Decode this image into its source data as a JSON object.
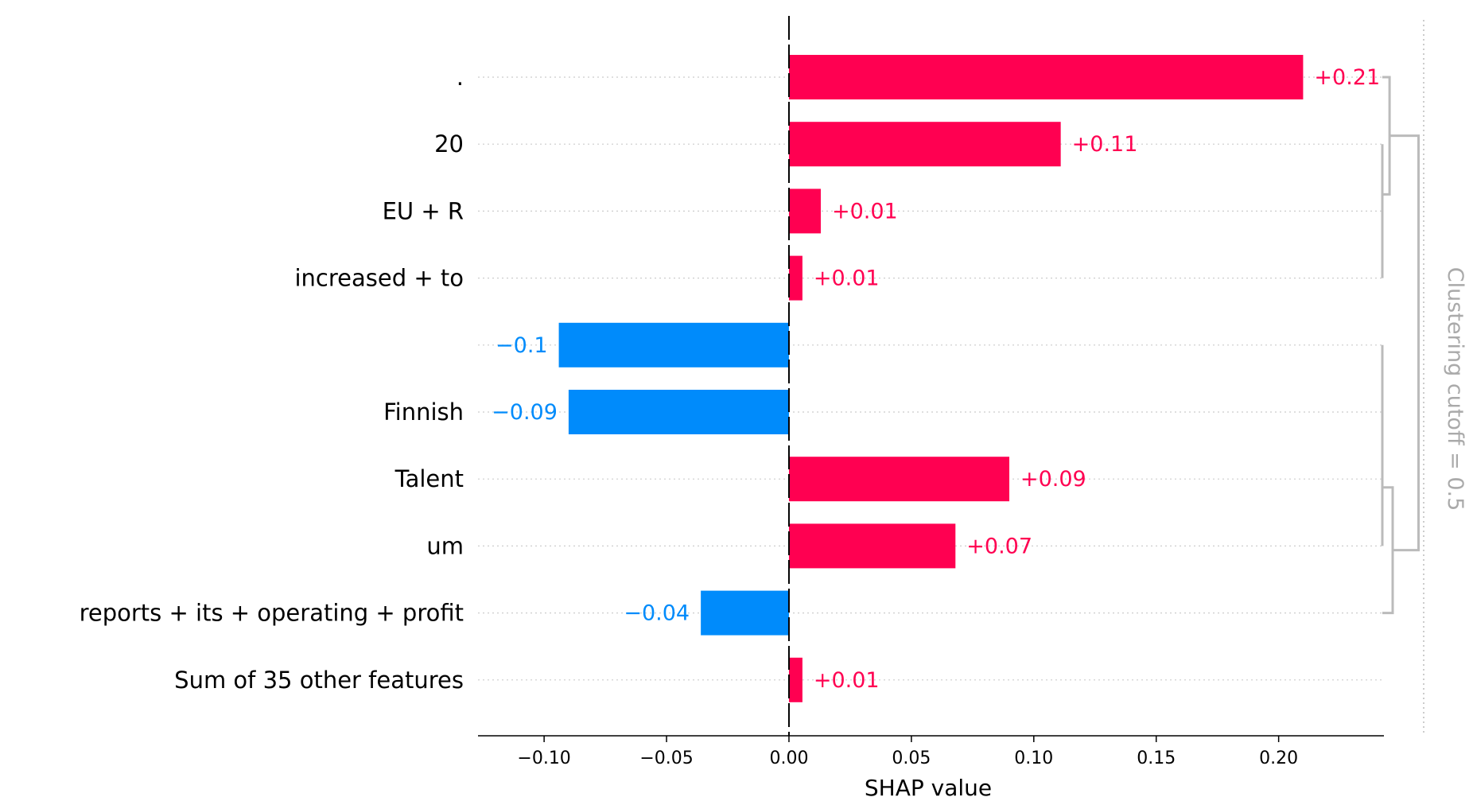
{
  "chart_data": {
    "type": "bar",
    "orientation": "horizontal",
    "xlabel": "SHAP value",
    "ylabel": "",
    "xlim": [
      -0.127,
      0.243
    ],
    "x_ticks": [
      -0.1,
      -0.05,
      0.0,
      0.05,
      0.1,
      0.15,
      0.2
    ],
    "x_tick_labels": [
      "−0.10",
      "−0.05",
      "0.00",
      "0.05",
      "0.10",
      "0.15",
      "0.20"
    ],
    "grid": "horizontal dotted",
    "bars": [
      {
        "feature": ".",
        "value": 0.21,
        "label": "+0.21"
      },
      {
        "feature": "20",
        "value": 0.111,
        "label": "+0.11"
      },
      {
        "feature": "EU + R",
        "value": 0.013,
        "label": "+0.01"
      },
      {
        "feature": "increased + to",
        "value": 0.0055,
        "label": "+0.01"
      },
      {
        "feature": "",
        "value": -0.094,
        "label": "−0.1"
      },
      {
        "feature": "Finnish",
        "value": -0.09,
        "label": "−0.09"
      },
      {
        "feature": "Talent",
        "value": 0.09,
        "label": "+0.09"
      },
      {
        "feature": "um",
        "value": 0.068,
        "label": "+0.07"
      },
      {
        "feature": "reports + its + operating + profit",
        "value": -0.036,
        "label": "−0.04"
      },
      {
        "feature": "Sum of 35 other features",
        "value": 0.0055,
        "label": "+0.01"
      }
    ],
    "clustering": {
      "label": "Clustering cutoff = 0.5",
      "merges": [
        [
          2,
          3,
          0.0
        ],
        [
          1,
          10,
          0.0
        ],
        [
          0,
          11,
          0.007
        ],
        [
          4,
          5,
          0.0
        ],
        [
          6,
          13,
          0.0
        ],
        [
          7,
          14,
          0.0
        ],
        [
          8,
          15,
          0.01
        ],
        [
          12,
          16,
          0.035
        ]
      ],
      "max_height": 0.04
    },
    "colors": {
      "positive": "#ff0051",
      "negative": "#008bfb",
      "grid": "#cccccc",
      "dendrogram": "#bbbbbb",
      "cutoff": "#cccccc"
    }
  }
}
